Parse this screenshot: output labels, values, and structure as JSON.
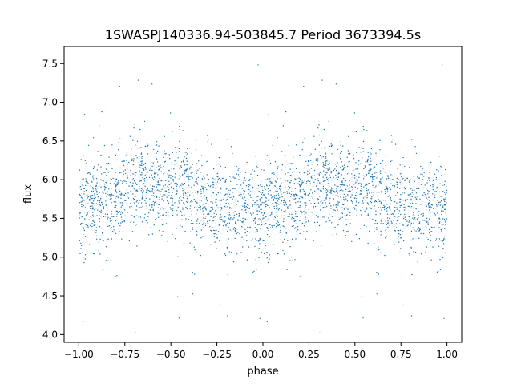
{
  "chart_data": {
    "type": "scatter",
    "title": "1SWASPJ140336.94-503845.7 Period 3673394.5s",
    "xlabel": "phase",
    "ylabel": "flux",
    "xlim": [
      -1.08,
      1.08
    ],
    "ylim": [
      3.9,
      7.72
    ],
    "xticks": [
      -1.0,
      -0.75,
      -0.5,
      -0.25,
      0.0,
      0.25,
      0.5,
      0.75,
      1.0
    ],
    "xtick_labels": [
      "−1.00",
      "−0.75",
      "−0.50",
      "−0.25",
      "0.00",
      "0.25",
      "0.50",
      "0.75",
      "1.00"
    ],
    "yticks": [
      4.0,
      4.5,
      5.0,
      5.5,
      6.0,
      6.5,
      7.0,
      7.5
    ],
    "ytick_labels": [
      "4.0",
      "4.5",
      "5.0",
      "5.5",
      "6.0",
      "6.5",
      "7.0",
      "7.5"
    ],
    "grid": false,
    "marker_color": "#1f77b4",
    "series": [
      {
        "phase_profile": {
          "x": [
            0.0,
            0.05,
            0.1,
            0.15,
            0.2,
            0.25,
            0.3,
            0.35,
            0.4,
            0.45,
            0.5,
            0.55,
            0.6,
            0.65,
            0.7,
            0.75,
            0.8,
            0.85,
            0.9,
            0.95,
            1.0
          ],
          "median_flux": [
            5.62,
            5.65,
            5.68,
            5.72,
            5.78,
            5.85,
            5.92,
            5.98,
            5.92,
            5.85,
            5.9,
            5.95,
            5.88,
            5.8,
            5.72,
            5.7,
            5.68,
            5.65,
            5.62,
            5.6,
            5.62
          ],
          "spread": 0.3
        },
        "outlier_flux_range": [
          4.0,
          7.5
        ]
      }
    ]
  }
}
